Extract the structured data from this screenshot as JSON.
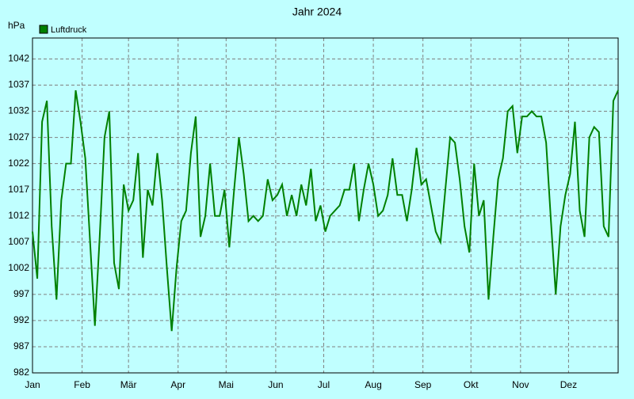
{
  "chart_data": {
    "type": "line",
    "title": "Jahr 2024",
    "y_label": "hPa",
    "series": [
      {
        "name": "Luftdruck",
        "color": "#008000",
        "x": [
          0,
          3,
          6,
          9,
          12,
          15,
          18,
          21,
          24,
          27,
          30,
          33,
          36,
          39,
          42,
          45,
          48,
          51,
          54,
          57,
          60,
          63,
          66,
          69,
          72,
          75,
          78,
          81,
          84,
          87,
          90,
          93,
          96,
          99,
          102,
          105,
          108,
          111,
          114,
          117,
          120,
          123,
          126,
          129,
          132,
          135,
          138,
          141,
          144,
          147,
          150,
          153,
          156,
          159,
          162,
          165,
          168,
          171,
          174,
          177,
          180,
          183,
          186,
          189,
          192,
          195,
          198,
          201,
          204,
          207,
          210,
          213,
          216,
          219,
          222,
          225,
          228,
          231,
          234,
          237,
          240,
          243,
          246,
          249,
          252,
          255,
          258,
          261,
          264,
          267,
          270,
          273,
          276,
          279,
          282,
          285,
          288,
          291,
          294,
          297,
          300,
          303,
          306,
          309,
          312,
          315,
          318,
          321,
          324,
          327,
          330,
          333,
          336,
          339,
          342,
          345,
          348,
          351,
          354,
          357,
          360,
          363,
          366
        ],
        "values": [
          1009,
          1000,
          1030,
          1034,
          1010,
          996,
          1015,
          1022,
          1022,
          1036,
          1030,
          1023,
          1007,
          991,
          1008,
          1027,
          1032,
          1003,
          998,
          1018,
          1013,
          1015,
          1024,
          1004,
          1017,
          1014,
          1024,
          1015,
          1002,
          990,
          1002,
          1011,
          1013,
          1024,
          1031,
          1008,
          1012,
          1022,
          1012,
          1012,
          1017,
          1006,
          1017,
          1027,
          1020,
          1011,
          1012,
          1011,
          1012,
          1019,
          1015,
          1016,
          1018,
          1012,
          1016,
          1012,
          1018,
          1014,
          1021,
          1011,
          1014,
          1009,
          1012,
          1013,
          1014,
          1017,
          1017,
          1022,
          1011,
          1017,
          1022,
          1018,
          1012,
          1013,
          1016,
          1023,
          1016,
          1016,
          1011,
          1017,
          1025,
          1018,
          1019,
          1014,
          1009,
          1007,
          1017,
          1027,
          1026,
          1019,
          1010,
          1005,
          1022,
          1012,
          1015,
          996,
          1008,
          1019,
          1023,
          1032,
          1033,
          1024,
          1031,
          1031,
          1032,
          1031,
          1031,
          1026,
          1011,
          997,
          1010,
          1016,
          1020,
          1030,
          1013,
          1008,
          1027,
          1029,
          1028,
          1010,
          1008,
          1034,
          1036
        ]
      }
    ],
    "xlim": [
      0,
      366
    ],
    "xticks": [
      {
        "value": 0,
        "label": "Jan"
      },
      {
        "value": 31,
        "label": "Feb"
      },
      {
        "value": 60,
        "label": "Mär"
      },
      {
        "value": 91,
        "label": "Apr"
      },
      {
        "value": 121,
        "label": "Mai"
      },
      {
        "value": 152,
        "label": "Jun"
      },
      {
        "value": 182,
        "label": "Jul"
      },
      {
        "value": 213,
        "label": "Aug"
      },
      {
        "value": 244,
        "label": "Sep"
      },
      {
        "value": 274,
        "label": "Okt"
      },
      {
        "value": 305,
        "label": "Nov"
      },
      {
        "value": 335,
        "label": "Dez"
      }
    ],
    "ylim": [
      982,
      1046
    ],
    "yticks": [
      982,
      987,
      992,
      997,
      1002,
      1007,
      1012,
      1017,
      1022,
      1027,
      1032,
      1037,
      1042
    ],
    "grid": true
  }
}
